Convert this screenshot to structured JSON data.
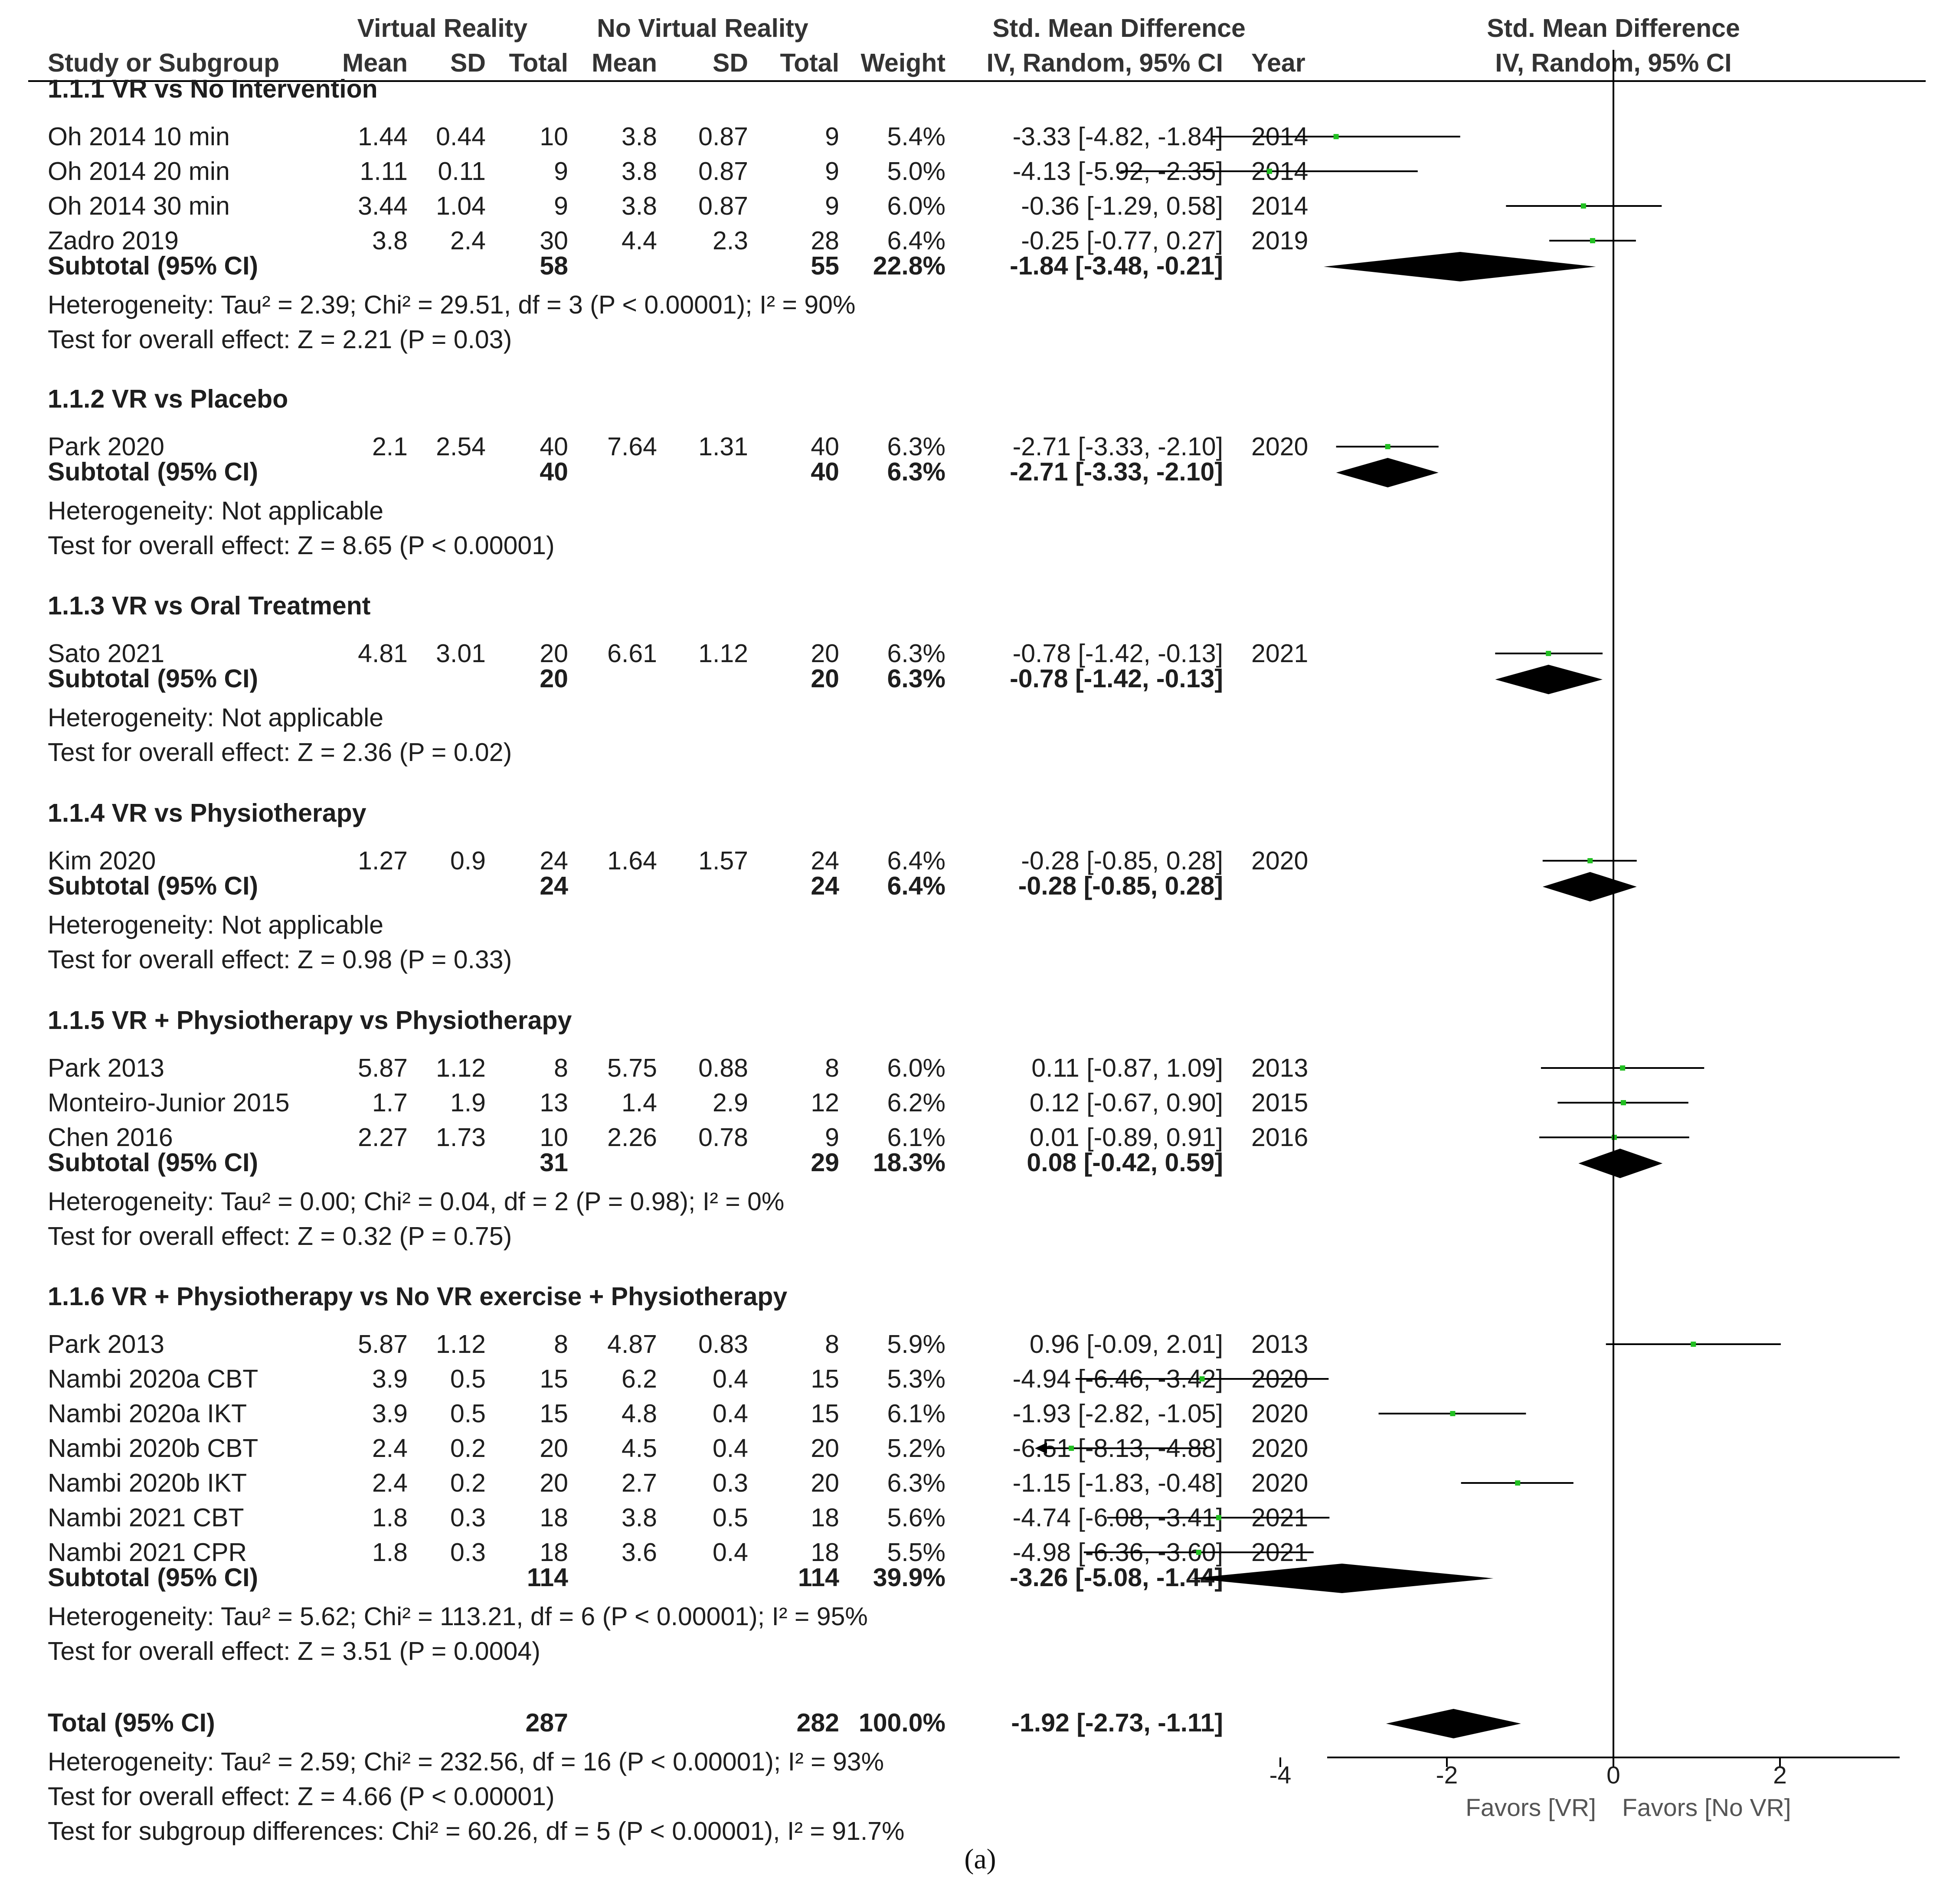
{
  "panel_label": "(a)",
  "colors": {
    "point": "#22c022",
    "line": "#000000",
    "text": "#1e1e1e"
  },
  "headers": {
    "group1": "Virtual Reality",
    "group2": "No Virtual Reality",
    "effect_group": "Std. Mean Difference",
    "plot_title": "Std. Mean Difference",
    "study": "Study or Subgroup",
    "mean": "Mean",
    "sd": "SD",
    "total": "Total",
    "weight": "Weight",
    "effect_method": "IV, Random, 95% CI",
    "year": "Year",
    "plot_method": "IV, Random, 95% CI"
  },
  "subgroups": [
    {
      "title": "1.1.1 VR vs No Intervention",
      "studies": [
        {
          "name": "Oh 2014 10 min",
          "m1": "1.44",
          "sd1": "0.44",
          "n1": "10",
          "m2": "3.8",
          "sd2": "0.87",
          "n2": "9",
          "weight": "5.4%",
          "ci": "-3.33 [-4.82, -1.84]",
          "year": "2014",
          "est": -3.33,
          "lo": -4.82,
          "hi": -1.84
        },
        {
          "name": "Oh 2014 20 min",
          "m1": "1.11",
          "sd1": "0.11",
          "n1": "9",
          "m2": "3.8",
          "sd2": "0.87",
          "n2": "9",
          "weight": "5.0%",
          "ci": "-4.13 [-5.92, -2.35]",
          "year": "2014",
          "est": -4.13,
          "lo": -5.92,
          "hi": -2.35
        },
        {
          "name": "Oh 2014 30 min",
          "m1": "3.44",
          "sd1": "1.04",
          "n1": "9",
          "m2": "3.8",
          "sd2": "0.87",
          "n2": "9",
          "weight": "6.0%",
          "ci": "-0.36 [-1.29, 0.58]",
          "year": "2014",
          "est": -0.36,
          "lo": -1.29,
          "hi": 0.58
        },
        {
          "name": "Zadro 2019",
          "m1": "3.8",
          "sd1": "2.4",
          "n1": "30",
          "m2": "4.4",
          "sd2": "2.3",
          "n2": "28",
          "weight": "6.4%",
          "ci": "-0.25 [-0.77, 0.27]",
          "year": "2019",
          "est": -0.25,
          "lo": -0.77,
          "hi": 0.27
        }
      ],
      "subtotal": {
        "label": "Subtotal (95% CI)",
        "n1": "58",
        "n2": "55",
        "weight": "22.8%",
        "ci": "-1.84 [-3.48, -0.21]",
        "est": -1.84,
        "lo": -3.48,
        "hi": -0.21
      },
      "heterogeneity": "Heterogeneity: Tau² = 2.39; Chi² = 29.51, df = 3 (P < 0.00001); I² = 90%",
      "overall": "Test for overall effect: Z = 2.21 (P = 0.03)"
    },
    {
      "title": "1.1.2 VR vs Placebo",
      "studies": [
        {
          "name": "Park 2020",
          "m1": "2.1",
          "sd1": "2.54",
          "n1": "40",
          "m2": "7.64",
          "sd2": "1.31",
          "n2": "40",
          "weight": "6.3%",
          "ci": "-2.71 [-3.33, -2.10]",
          "year": "2020",
          "est": -2.71,
          "lo": -3.33,
          "hi": -2.1
        }
      ],
      "subtotal": {
        "label": "Subtotal (95% CI)",
        "n1": "40",
        "n2": "40",
        "weight": "6.3%",
        "ci": "-2.71 [-3.33, -2.10]",
        "est": -2.71,
        "lo": -3.33,
        "hi": -2.1
      },
      "heterogeneity": "Heterogeneity: Not applicable",
      "overall": "Test for overall effect: Z = 8.65 (P < 0.00001)"
    },
    {
      "title": "1.1.3 VR vs Oral Treatment",
      "studies": [
        {
          "name": "Sato 2021",
          "m1": "4.81",
          "sd1": "3.01",
          "n1": "20",
          "m2": "6.61",
          "sd2": "1.12",
          "n2": "20",
          "weight": "6.3%",
          "ci": "-0.78 [-1.42, -0.13]",
          "year": "2021",
          "est": -0.78,
          "lo": -1.42,
          "hi": -0.13
        }
      ],
      "subtotal": {
        "label": "Subtotal (95% CI)",
        "n1": "20",
        "n2": "20",
        "weight": "6.3%",
        "ci": "-0.78 [-1.42, -0.13]",
        "est": -0.78,
        "lo": -1.42,
        "hi": -0.13
      },
      "heterogeneity": "Heterogeneity: Not applicable",
      "overall": "Test for overall effect: Z = 2.36 (P = 0.02)"
    },
    {
      "title": "1.1.4 VR vs Physiotherapy",
      "studies": [
        {
          "name": "Kim 2020",
          "m1": "1.27",
          "sd1": "0.9",
          "n1": "24",
          "m2": "1.64",
          "sd2": "1.57",
          "n2": "24",
          "weight": "6.4%",
          "ci": "-0.28 [-0.85, 0.28]",
          "year": "2020",
          "est": -0.28,
          "lo": -0.85,
          "hi": 0.28
        }
      ],
      "subtotal": {
        "label": "Subtotal (95% CI)",
        "n1": "24",
        "n2": "24",
        "weight": "6.4%",
        "ci": "-0.28 [-0.85, 0.28]",
        "est": -0.28,
        "lo": -0.85,
        "hi": 0.28
      },
      "heterogeneity": "Heterogeneity: Not applicable",
      "overall": "Test for overall effect: Z = 0.98 (P = 0.33)"
    },
    {
      "title": "1.1.5 VR + Physiotherapy vs Physiotherapy",
      "studies": [
        {
          "name": "Park 2013",
          "m1": "5.87",
          "sd1": "1.12",
          "n1": "8",
          "m2": "5.75",
          "sd2": "0.88",
          "n2": "8",
          "weight": "6.0%",
          "ci": "0.11 [-0.87, 1.09]",
          "year": "2013",
          "est": 0.11,
          "lo": -0.87,
          "hi": 1.09
        },
        {
          "name": "Monteiro-Junior 2015",
          "m1": "1.7",
          "sd1": "1.9",
          "n1": "13",
          "m2": "1.4",
          "sd2": "2.9",
          "n2": "12",
          "weight": "6.2%",
          "ci": "0.12 [-0.67, 0.90]",
          "year": "2015",
          "est": 0.12,
          "lo": -0.67,
          "hi": 0.9
        },
        {
          "name": "Chen 2016",
          "m1": "2.27",
          "sd1": "1.73",
          "n1": "10",
          "m2": "2.26",
          "sd2": "0.78",
          "n2": "9",
          "weight": "6.1%",
          "ci": "0.01 [-0.89, 0.91]",
          "year": "2016",
          "est": 0.01,
          "lo": -0.89,
          "hi": 0.91
        }
      ],
      "subtotal": {
        "label": "Subtotal (95% CI)",
        "n1": "31",
        "n2": "29",
        "weight": "18.3%",
        "ci": "0.08 [-0.42, 0.59]",
        "est": 0.08,
        "lo": -0.42,
        "hi": 0.59
      },
      "heterogeneity": "Heterogeneity: Tau² = 0.00; Chi² = 0.04, df = 2 (P = 0.98); I² = 0%",
      "overall": "Test for overall effect: Z = 0.32 (P = 0.75)"
    },
    {
      "title": "1.1.6 VR + Physiotherapy vs No VR exercise + Physiotherapy",
      "studies": [
        {
          "name": "Park 2013",
          "m1": "5.87",
          "sd1": "1.12",
          "n1": "8",
          "m2": "4.87",
          "sd2": "0.83",
          "n2": "8",
          "weight": "5.9%",
          "ci": "0.96 [-0.09, 2.01]",
          "year": "2013",
          "est": 0.96,
          "lo": -0.09,
          "hi": 2.01
        },
        {
          "name": "Nambi 2020a CBT",
          "m1": "3.9",
          "sd1": "0.5",
          "n1": "15",
          "m2": "6.2",
          "sd2": "0.4",
          "n2": "15",
          "weight": "5.3%",
          "ci": "-4.94 [-6.46, -3.42]",
          "year": "2020",
          "est": -4.94,
          "lo": -6.46,
          "hi": -3.42
        },
        {
          "name": "Nambi 2020a IKT",
          "m1": "3.9",
          "sd1": "0.5",
          "n1": "15",
          "m2": "4.8",
          "sd2": "0.4",
          "n2": "15",
          "weight": "6.1%",
          "ci": "-1.93 [-2.82, -1.05]",
          "year": "2020",
          "est": -1.93,
          "lo": -2.82,
          "hi": -1.05
        },
        {
          "name": "Nambi 2020b CBT",
          "m1": "2.4",
          "sd1": "0.2",
          "n1": "20",
          "m2": "4.5",
          "sd2": "0.4",
          "n2": "20",
          "weight": "5.2%",
          "ci": "-6.51 [-8.13, -4.88]",
          "year": "2020",
          "est": -6.51,
          "lo": -8.13,
          "hi": -4.88
        },
        {
          "name": "Nambi 2020b IKT",
          "m1": "2.4",
          "sd1": "0.2",
          "n1": "20",
          "m2": "2.7",
          "sd2": "0.3",
          "n2": "20",
          "weight": "6.3%",
          "ci": "-1.15 [-1.83, -0.48]",
          "year": "2020",
          "est": -1.15,
          "lo": -1.83,
          "hi": -0.48
        },
        {
          "name": "Nambi 2021 CBT",
          "m1": "1.8",
          "sd1": "0.3",
          "n1": "18",
          "m2": "3.8",
          "sd2": "0.5",
          "n2": "18",
          "weight": "5.6%",
          "ci": "-4.74 [-6.08, -3.41]",
          "year": "2021",
          "est": -4.74,
          "lo": -6.08,
          "hi": -3.41
        },
        {
          "name": "Nambi 2021 CPR",
          "m1": "1.8",
          "sd1": "0.3",
          "n1": "18",
          "m2": "3.6",
          "sd2": "0.4",
          "n2": "18",
          "weight": "5.5%",
          "ci": "-4.98 [-6.36, -3.60]",
          "year": "2021",
          "est": -4.98,
          "lo": -6.36,
          "hi": -3.6
        }
      ],
      "subtotal": {
        "label": "Subtotal (95% CI)",
        "n1": "114",
        "n2": "114",
        "weight": "39.9%",
        "ci": "-3.26 [-5.08, -1.44]",
        "est": -3.26,
        "lo": -5.08,
        "hi": -1.44
      },
      "heterogeneity": "Heterogeneity: Tau² = 5.62; Chi² = 113.21, df = 6 (P < 0.00001); I² = 95%",
      "overall": "Test for overall effect: Z = 3.51 (P = 0.0004)"
    }
  ],
  "total": {
    "label": "Total (95% CI)",
    "n1": "287",
    "n2": "282",
    "weight": "100.0%",
    "ci": "-1.92 [-2.73, -1.11]",
    "est": -1.92,
    "lo": -2.73,
    "hi": -1.11,
    "heterogeneity": "Heterogeneity: Tau² = 2.59; Chi² = 232.56, df = 16 (P < 0.00001); I² = 93%",
    "overall": "Test for overall effect: Z = 4.66 (P < 0.00001)",
    "subgroup_diff": "Test for subgroup differences: Chi² = 60.26, df = 5 (P < 0.00001), I² = 91.7%"
  },
  "chart_data": {
    "type": "forest",
    "title": "Std. Mean Difference",
    "subtitle": "IV, Random, 95% CI",
    "xlim": [
      -7,
      7
    ],
    "x_ticks": [
      "-4",
      "-2",
      "0",
      "2",
      "4"
    ],
    "x_tick_values": [
      -4,
      -2,
      0,
      2,
      4
    ],
    "favors_left": "Favors [VR]",
    "favors_right": "Favors [No VR]",
    "grid": false
  }
}
